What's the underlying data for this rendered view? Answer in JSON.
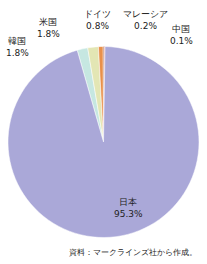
{
  "chart_data": {
    "type": "pie",
    "categories": [
      "韓国",
      "米国",
      "ドイツ",
      "マレーシア",
      "中国",
      "日本"
    ],
    "values": [
      1.8,
      1.8,
      0.8,
      0.2,
      0.1,
      95.3
    ],
    "value_labels": [
      "1.8%",
      "1.8%",
      "0.8%",
      "0.2%",
      "0.1%",
      "95.3%"
    ],
    "colors": [
      "#c6e7e1",
      "#e3e6b4",
      "#e8904a",
      "#a0522d",
      "#c8302c",
      "#aaa8d8"
    ],
    "data_labels": true,
    "source": "資料：マークラインズ社から作成。"
  }
}
